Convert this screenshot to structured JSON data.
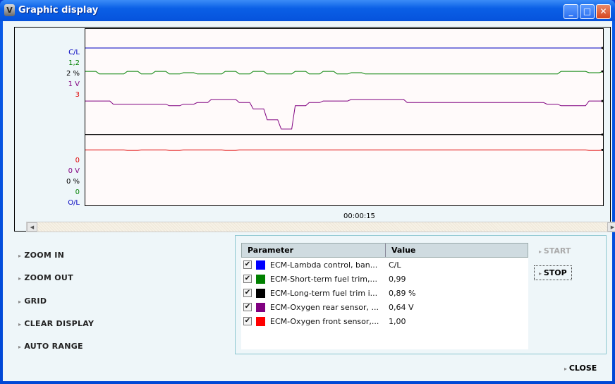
{
  "window": {
    "title": "Graphic display",
    "controls": [
      "minimize",
      "maximize",
      "close"
    ]
  },
  "chart_data": {
    "type": "line",
    "x_label_center": "00:00:15",
    "axis_top_labels": [
      {
        "text": "C/L",
        "color": "#0000c0"
      },
      {
        "text": "1,2",
        "color": "#008000"
      },
      {
        "text": "2 %",
        "color": "#000000"
      },
      {
        "text": "1 V",
        "color": "#800080"
      },
      {
        "text": "3",
        "color": "#e00000"
      }
    ],
    "axis_bottom_labels": [
      {
        "text": "0",
        "color": "#e00000"
      },
      {
        "text": "0 V",
        "color": "#800080"
      },
      {
        "text": "0 %",
        "color": "#000000"
      },
      {
        "text": "0",
        "color": "#008000"
      },
      {
        "text": "O/L",
        "color": "#0000c0"
      }
    ],
    "series": [
      {
        "color": "#0000c0",
        "min": 0,
        "max": 1,
        "values": [
          1,
          1,
          1,
          1,
          1,
          1,
          1,
          1,
          1,
          1,
          1,
          1,
          1,
          1,
          1,
          1,
          1,
          1,
          1,
          1,
          1,
          1,
          1,
          1,
          1,
          1,
          1,
          1,
          1,
          1,
          1,
          1,
          1,
          1,
          1,
          1,
          1,
          1
        ]
      },
      {
        "color": "#008000",
        "min": 0,
        "max": 1.2,
        "values": [
          1.02,
          1.0,
          1.0,
          1.02,
          1.0,
          1.02,
          1.0,
          1.01,
          1.0,
          1.0,
          1.02,
          1.0,
          1.02,
          1.0,
          1.0,
          1.02,
          1.0,
          1.02,
          1.0,
          1.01,
          1.0,
          1.0,
          1.0,
          1.0,
          1.0,
          1.0,
          1.0,
          1.0,
          1.0,
          1.0,
          1.0,
          1.0,
          1.0,
          1.0,
          1.02,
          1.02,
          1.01,
          1.02
        ]
      },
      {
        "color": "#000000",
        "min": 0,
        "max": 2,
        "values": [
          0.89,
          0.89,
          0.89,
          0.89,
          0.89,
          0.89,
          0.89,
          0.89,
          0.89,
          0.89,
          0.89,
          0.89,
          0.89,
          0.89,
          0.89,
          0.89,
          0.89,
          0.89,
          0.89,
          0.89,
          0.89,
          0.89,
          0.89,
          0.89,
          0.89,
          0.89,
          0.89,
          0.89,
          0.89,
          0.89,
          0.89,
          0.89,
          0.89,
          0.89,
          0.89,
          0.89,
          0.89,
          0.89
        ]
      },
      {
        "color": "#800080",
        "min": 0,
        "max": 1,
        "values": [
          0.66,
          0.66,
          0.64,
          0.64,
          0.64,
          0.64,
          0.63,
          0.64,
          0.65,
          0.67,
          0.67,
          0.65,
          0.61,
          0.54,
          0.48,
          0.63,
          0.65,
          0.66,
          0.66,
          0.67,
          0.67,
          0.67,
          0.67,
          0.65,
          0.65,
          0.65,
          0.65,
          0.65,
          0.65,
          0.65,
          0.65,
          0.65,
          0.65,
          0.64,
          0.63,
          0.63,
          0.66,
          0.66
        ]
      },
      {
        "color": "#e00000",
        "min": 0,
        "max": 3,
        "values": [
          1.04,
          1.04,
          1.04,
          1.03,
          1.04,
          1.04,
          1.03,
          1.04,
          1.04,
          1.04,
          1.03,
          1.04,
          1.04,
          1.04,
          1.04,
          1.04,
          1.04,
          1.04,
          1.04,
          1.04,
          1.04,
          1.04,
          1.04,
          1.04,
          1.04,
          1.04,
          1.04,
          1.04,
          1.04,
          1.04,
          1.04,
          1.04,
          1.04,
          1.04,
          1.04,
          1.04,
          1.03,
          1.04
        ]
      }
    ]
  },
  "left_buttons": [
    {
      "label": "ZOOM IN"
    },
    {
      "label": "ZOOM OUT"
    },
    {
      "label": "GRID"
    },
    {
      "label": "CLEAR DISPLAY"
    },
    {
      "label": "AUTO RANGE"
    }
  ],
  "table": {
    "headers": [
      "Parameter",
      "Value"
    ],
    "rows": [
      {
        "checked": true,
        "color": "#0000ff",
        "name": "ECM-Lambda control, ban...",
        "value": "C/L"
      },
      {
        "checked": true,
        "color": "#008000",
        "name": "ECM-Short-term fuel trim,...",
        "value": "0,99"
      },
      {
        "checked": true,
        "color": "#000000",
        "name": "ECM-Long-term fuel trim i...",
        "value": "0,89 %"
      },
      {
        "checked": true,
        "color": "#800080",
        "name": "ECM-Oxygen rear sensor, ...",
        "value": "0,64 V"
      },
      {
        "checked": true,
        "color": "#ff0000",
        "name": "ECM-Oxygen front sensor,...",
        "value": "1,00"
      }
    ]
  },
  "start_label": "START",
  "stop_label": "STOP",
  "close_label": "CLOSE"
}
